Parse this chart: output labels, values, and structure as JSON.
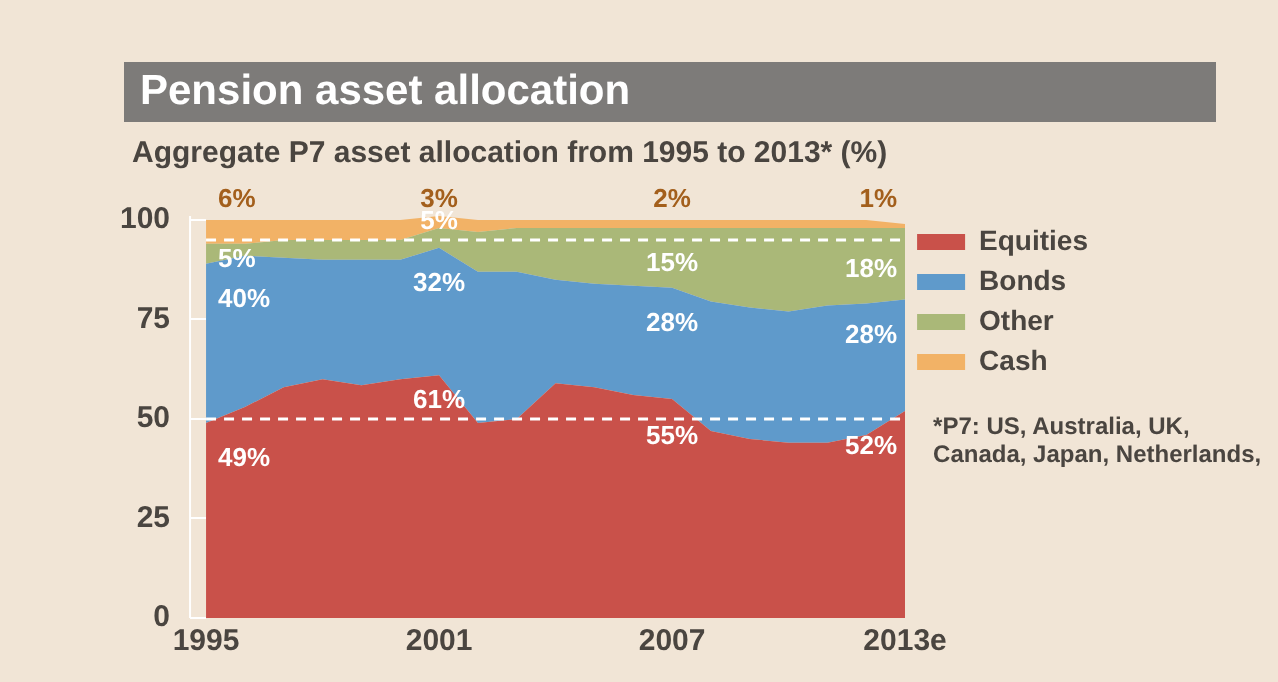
{
  "chart_data": {
    "type": "area",
    "stacked": true,
    "title": "Pension asset allocation",
    "subtitle": "Aggregate P7 asset allocation from 1995 to 2013* (%)",
    "x": [
      1995,
      1996,
      1997,
      1998,
      1999,
      2000,
      2001,
      2002,
      2003,
      2004,
      2005,
      2006,
      2007,
      2008,
      2009,
      2010,
      2011,
      2012,
      2013
    ],
    "xlim": [
      1995,
      2013
    ],
    "xticks": [
      1995,
      2001,
      2007,
      {
        "value": 2013,
        "label": "2013e"
      }
    ],
    "ylim": [
      0,
      101
    ],
    "yticks": [
      0,
      25,
      50,
      75,
      100
    ],
    "series": [
      {
        "name": "Equities",
        "color": "#c9514a",
        "values": [
          49,
          53,
          58,
          60,
          58.5,
          60,
          61,
          49,
          50,
          59,
          58,
          56,
          55,
          47,
          45,
          44,
          44,
          46,
          52
        ],
        "value_labels": [
          "49%",
          null,
          null,
          null,
          null,
          null,
          "61%",
          null,
          null,
          null,
          null,
          null,
          "55%",
          null,
          null,
          null,
          null,
          null,
          "52%"
        ]
      },
      {
        "name": "Bonds",
        "color": "#5f9acb",
        "values": [
          40,
          38,
          32.5,
          30,
          31.5,
          30,
          32,
          38,
          37,
          26,
          26,
          27.5,
          28,
          32.5,
          33,
          33,
          34.5,
          33,
          28
        ],
        "value_labels": [
          "40%",
          null,
          null,
          null,
          null,
          null,
          "32%",
          null,
          null,
          null,
          null,
          null,
          "28%",
          null,
          null,
          null,
          null,
          null,
          "28%"
        ]
      },
      {
        "name": "Other",
        "color": "#aab878",
        "values": [
          5,
          3,
          4.5,
          5,
          5,
          5,
          5,
          10,
          11,
          13,
          14,
          14.5,
          15,
          18.5,
          20,
          21,
          19.5,
          19,
          18
        ],
        "value_labels": [
          "5%",
          null,
          null,
          null,
          null,
          null,
          "5%",
          null,
          null,
          null,
          null,
          null,
          "15%",
          null,
          null,
          null,
          null,
          null,
          "18%"
        ]
      },
      {
        "name": "Cash",
        "color": "#f2b266",
        "values": [
          6,
          6,
          5,
          5,
          5,
          5,
          3,
          3,
          2,
          2,
          2,
          2,
          2,
          2,
          2,
          2,
          2,
          2,
          1
        ],
        "value_labels": [
          "6%",
          null,
          null,
          null,
          null,
          null,
          "3%",
          null,
          null,
          null,
          null,
          null,
          "2%",
          null,
          null,
          null,
          null,
          null,
          "1%"
        ]
      }
    ],
    "ref_lines": [
      {
        "axis": "y",
        "value": 50,
        "color": "#ffffff",
        "line_style": "dashed"
      },
      {
        "axis": "y",
        "value": 95,
        "color": "#ffffff",
        "line_style": "dashed"
      }
    ],
    "legend": "right",
    "grid": false,
    "annotations": [
      "*P7: US, Australia, UK, Canada, Japan, Netherlands,"
    ]
  }
}
